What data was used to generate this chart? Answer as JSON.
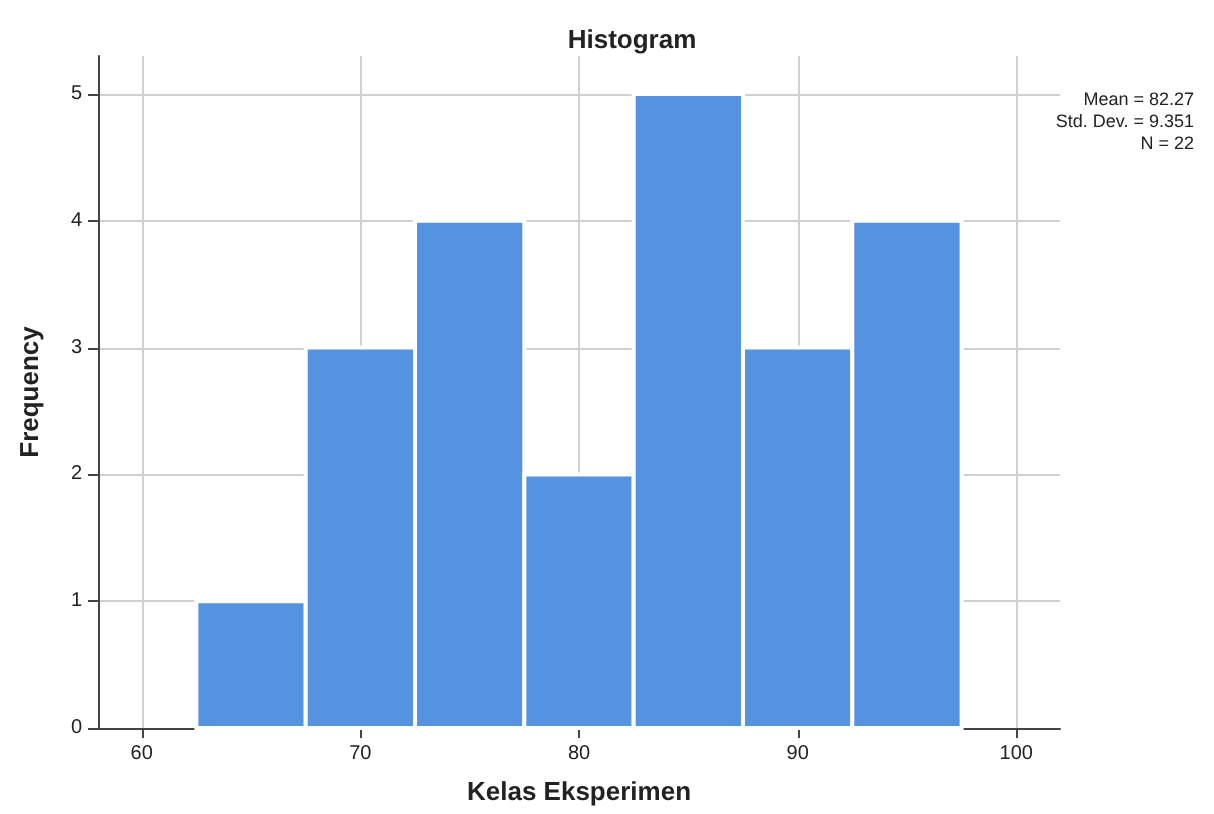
{
  "chart_data": {
    "type": "histogram",
    "title": "Histogram",
    "xlabel": "Kelas Eksperimen",
    "ylabel": "Frequency",
    "bins": [
      62.5,
      67.5,
      72.5,
      77.5,
      82.5,
      87.5,
      92.5,
      97.5
    ],
    "values": [
      1,
      3,
      4,
      2,
      5,
      3,
      4
    ],
    "color": "#5593e0",
    "xlim": [
      58,
      102
    ],
    "xticks": [
      60,
      70,
      80,
      90,
      100
    ],
    "ylim": [
      0,
      5.3
    ],
    "yticks": [
      0,
      1,
      2,
      3,
      4,
      5
    ],
    "grid": true,
    "annotations": [
      "Mean = 82.27",
      "Std. Dev. = 9.351",
      "N = 22"
    ]
  }
}
